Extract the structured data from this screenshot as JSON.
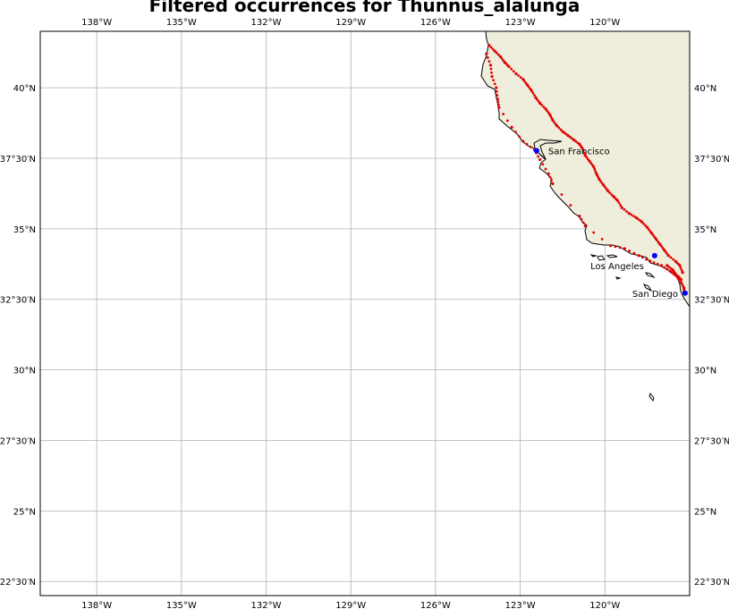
{
  "title": "Filtered occurrences for Thunnus_alalunga",
  "map": {
    "lon_range": [
      -140,
      -117
    ],
    "lat_range": [
      22,
      42
    ],
    "gridlines": true,
    "colors": {
      "land": "#efeddb",
      "coast": "#000000",
      "grid": "#b0b0b0",
      "points": "#e00000",
      "cities": "#0000ff",
      "frame": "#000000"
    },
    "lon_ticks": [
      {
        "value": -138,
        "label": "138°W"
      },
      {
        "value": -135,
        "label": "135°W"
      },
      {
        "value": -132,
        "label": "132°W"
      },
      {
        "value": -129,
        "label": "129°W"
      },
      {
        "value": -126,
        "label": "126°W"
      },
      {
        "value": -123,
        "label": "123°W"
      },
      {
        "value": -120,
        "label": "120°W"
      }
    ],
    "lat_ticks": [
      {
        "value": 40,
        "label": "40°N"
      },
      {
        "value": 37.5,
        "label": "37°30′N"
      },
      {
        "value": 35,
        "label": "35°N"
      },
      {
        "value": 32.5,
        "label": "32°30′N"
      },
      {
        "value": 30,
        "label": "30°N"
      },
      {
        "value": 27.5,
        "label": "27°30′N"
      },
      {
        "value": 25,
        "label": "25°N"
      },
      {
        "value": 22.5,
        "label": "22°30′N"
      }
    ],
    "cities": [
      {
        "name": "San Francisco",
        "lon": -122.42,
        "lat": 37.77,
        "label_side": "right"
      },
      {
        "name": "Los Angeles",
        "lon": -118.24,
        "lat": 34.05,
        "label_side": "below-left"
      },
      {
        "name": "San Diego",
        "lon": -117.16,
        "lat": 32.72,
        "label_side": "left"
      }
    ],
    "occurrence_tracks": [
      [
        [
          -124.1,
          41.5
        ],
        [
          -123.9,
          41.3
        ],
        [
          -123.7,
          41.1
        ],
        [
          -123.55,
          40.9
        ],
        [
          -123.4,
          40.75
        ],
        [
          -123.15,
          40.5
        ],
        [
          -122.9,
          40.3
        ],
        [
          -122.75,
          40.1
        ],
        [
          -122.6,
          39.9
        ],
        [
          -122.45,
          39.65
        ],
        [
          -122.3,
          39.45
        ],
        [
          -122.1,
          39.25
        ],
        [
          -121.95,
          39.05
        ],
        [
          -121.85,
          38.85
        ],
        [
          -121.7,
          38.65
        ],
        [
          -121.5,
          38.45
        ],
        [
          -121.3,
          38.3
        ],
        [
          -121.1,
          38.15
        ],
        [
          -120.9,
          38.0
        ],
        [
          -120.8,
          37.85
        ],
        [
          -120.7,
          37.6
        ],
        [
          -120.55,
          37.4
        ],
        [
          -120.4,
          37.2
        ],
        [
          -120.3,
          36.95
        ],
        [
          -120.2,
          36.75
        ],
        [
          -120.05,
          36.55
        ],
        [
          -119.9,
          36.35
        ],
        [
          -119.7,
          36.15
        ],
        [
          -119.55,
          36.0
        ],
        [
          -119.4,
          35.75
        ],
        [
          -119.15,
          35.55
        ],
        [
          -118.9,
          35.4
        ],
        [
          -118.7,
          35.25
        ],
        [
          -118.5,
          35.05
        ],
        [
          -118.35,
          34.85
        ],
        [
          -118.2,
          34.65
        ],
        [
          -118.05,
          34.45
        ],
        [
          -117.9,
          34.25
        ],
        [
          -117.75,
          34.05
        ],
        [
          -117.5,
          33.85
        ],
        [
          -117.35,
          33.7
        ],
        [
          -117.25,
          33.45
        ]
      ],
      [
        [
          -124.2,
          41.2
        ],
        [
          -124.05,
          40.8
        ],
        [
          -124.0,
          40.4
        ],
        [
          -123.85,
          40.0
        ],
        [
          -123.8,
          39.6
        ],
        [
          -123.75,
          39.3
        ],
        [
          -123.3,
          38.6
        ],
        [
          -122.9,
          38.1
        ],
        [
          -122.5,
          37.8
        ],
        [
          -122.3,
          37.45
        ],
        [
          -122.0,
          36.95
        ],
        [
          -121.85,
          36.6
        ],
        [
          -120.9,
          35.45
        ],
        [
          -120.7,
          35.1
        ],
        [
          -119.8,
          34.4
        ],
        [
          -119.3,
          34.3
        ],
        [
          -118.8,
          34.05
        ],
        [
          -118.4,
          33.85
        ],
        [
          -118.0,
          33.7
        ],
        [
          -117.7,
          33.5
        ],
        [
          -117.5,
          33.35
        ],
        [
          -117.3,
          33.1
        ],
        [
          -117.2,
          32.9
        ],
        [
          -117.2,
          32.75
        ]
      ],
      [
        [
          -117.4,
          33.3
        ],
        [
          -117.3,
          33.2
        ],
        [
          -117.5,
          33.4
        ],
        [
          -117.6,
          33.55
        ],
        [
          -117.8,
          33.7
        ]
      ]
    ]
  }
}
